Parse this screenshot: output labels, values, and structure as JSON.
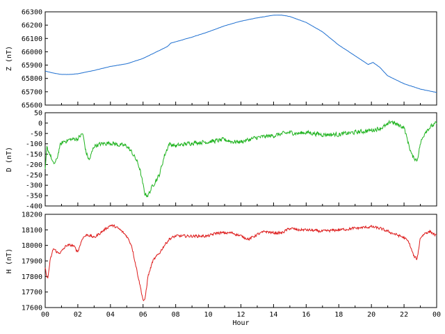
{
  "chart_data": [
    {
      "type": "line",
      "ylabel": "Z (nT)",
      "ylim": [
        65600,
        66300
      ],
      "yticks": [
        65600,
        65700,
        65800,
        65900,
        66000,
        66100,
        66200,
        66300
      ],
      "xlim": [
        0,
        24
      ],
      "color": "#1e6fd0",
      "noise": 1,
      "series": [
        {
          "x": [
            0,
            0.5,
            1,
            1.5,
            2,
            3,
            4,
            5,
            6,
            7,
            7.5,
            7.7,
            8,
            9,
            10,
            11,
            12,
            13,
            14,
            14.5,
            15,
            16,
            17,
            18,
            19,
            19.8,
            20.1,
            20.5,
            21,
            22,
            23,
            24
          ],
          "y": [
            65855,
            65840,
            65830,
            65830,
            65835,
            65860,
            65890,
            65910,
            65950,
            66010,
            66040,
            66065,
            66075,
            66110,
            66150,
            66195,
            66230,
            66255,
            66275,
            66275,
            66265,
            66220,
            66150,
            66050,
            65970,
            65905,
            65920,
            65885,
            65820,
            65760,
            65720,
            65695
          ]
        }
      ]
    },
    {
      "type": "line",
      "ylabel": "D (nT)",
      "ylim": [
        -400,
        50
      ],
      "yticks": [
        -400,
        -350,
        -300,
        -250,
        -200,
        -150,
        -100,
        -50,
        0,
        50
      ],
      "xlim": [
        0,
        24
      ],
      "color": "#1fb31f",
      "noise": 14,
      "series": [
        {
          "x": [
            0,
            0.1,
            0.3,
            0.5,
            0.7,
            0.9,
            1.1,
            1.5,
            2,
            2.3,
            2.5,
            2.7,
            3,
            3.5,
            4,
            4.5,
            5,
            5.3,
            5.6,
            5.8,
            6,
            6.1,
            6.3,
            6.6,
            7,
            7.3,
            7.6,
            8,
            9,
            10,
            11,
            11.5,
            12,
            13,
            14,
            15,
            15.5,
            16,
            17,
            18,
            19,
            20,
            20.5,
            21,
            21.2,
            21.5,
            22,
            22.2,
            22.5,
            22.8,
            23,
            23.3,
            23.6,
            24
          ],
          "y": [
            -230,
            -120,
            -150,
            -200,
            -180,
            -110,
            -90,
            -80,
            -75,
            -50,
            -140,
            -180,
            -110,
            -100,
            -95,
            -105,
            -110,
            -140,
            -180,
            -220,
            -300,
            -340,
            -350,
            -300,
            -250,
            -160,
            -100,
            -110,
            -95,
            -90,
            -80,
            -90,
            -90,
            -70,
            -60,
            -45,
            -50,
            -45,
            -55,
            -55,
            -45,
            -35,
            -25,
            -10,
            10,
            -5,
            -20,
            -80,
            -160,
            -180,
            -100,
            -40,
            -20,
            0
          ]
        }
      ]
    },
    {
      "type": "line",
      "ylabel": "H (nT)",
      "ylim": [
        17600,
        18200
      ],
      "yticks": [
        17600,
        17700,
        17800,
        17900,
        18000,
        18100,
        18200
      ],
      "xlim": [
        0,
        24
      ],
      "xticks": [
        "00",
        "02",
        "04",
        "06",
        "08",
        "10",
        "12",
        "14",
        "16",
        "18",
        "20",
        "22",
        "00"
      ],
      "xlabel": "Hour",
      "color": "#dd1a1a",
      "noise": 12,
      "series": [
        {
          "x": [
            0,
            0.15,
            0.3,
            0.5,
            0.8,
            1,
            1.3,
            1.7,
            2,
            2.3,
            2.6,
            3,
            3.5,
            4,
            4.3,
            4.6,
            5,
            5.3,
            5.5,
            5.7,
            5.9,
            6,
            6.1,
            6.3,
            6.6,
            7,
            7.3,
            7.6,
            8,
            9,
            10,
            10.5,
            11,
            11.5,
            12,
            12.5,
            13,
            13.5,
            14,
            14.5,
            15,
            15.5,
            16,
            17,
            18,
            19,
            20,
            20.5,
            21,
            21.5,
            22,
            22.3,
            22.6,
            22.8,
            23,
            23.3,
            23.6,
            24
          ],
          "y": [
            17850,
            17780,
            17900,
            17980,
            17950,
            17960,
            18000,
            18000,
            17960,
            18050,
            18070,
            18050,
            18090,
            18130,
            18120,
            18100,
            18060,
            18000,
            17900,
            17800,
            17700,
            17650,
            17640,
            17800,
            17900,
            17950,
            18000,
            18040,
            18060,
            18060,
            18060,
            18080,
            18080,
            18080,
            18060,
            18040,
            18070,
            18090,
            18080,
            18080,
            18110,
            18100,
            18100,
            18090,
            18100,
            18110,
            18120,
            18110,
            18090,
            18070,
            18050,
            18020,
            17930,
            17910,
            18050,
            18080,
            18090,
            18060
          ]
        }
      ]
    }
  ]
}
